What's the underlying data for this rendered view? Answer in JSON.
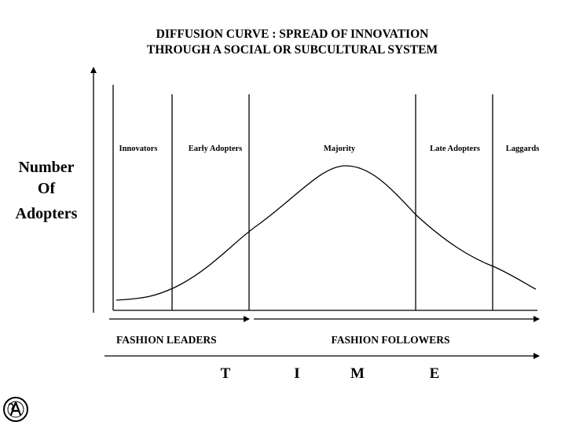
{
  "title": {
    "line1": "DIFFUSION CURVE : SPREAD OF INNOVATION",
    "line2": "THROUGH A SOCIAL OR SUBCULTURAL SYSTEM"
  },
  "y_axis_label": [
    "Number",
    "Of",
    "Adopters"
  ],
  "segments": [
    {
      "key": "innovators",
      "label": "Innovators"
    },
    {
      "key": "early_adopters",
      "label": "Early Adopters"
    },
    {
      "key": "majority",
      "label": "Majority"
    },
    {
      "key": "late_adopters",
      "label": "Late Adopters"
    },
    {
      "key": "laggards",
      "label": "Laggards"
    }
  ],
  "groups": {
    "leaders": "FASHION LEADERS",
    "followers": "FASHION FOLLOWERS"
  },
  "time_letters": [
    "T",
    "I",
    "M",
    "E"
  ],
  "logo": {
    "name": "publisher-logo"
  }
}
